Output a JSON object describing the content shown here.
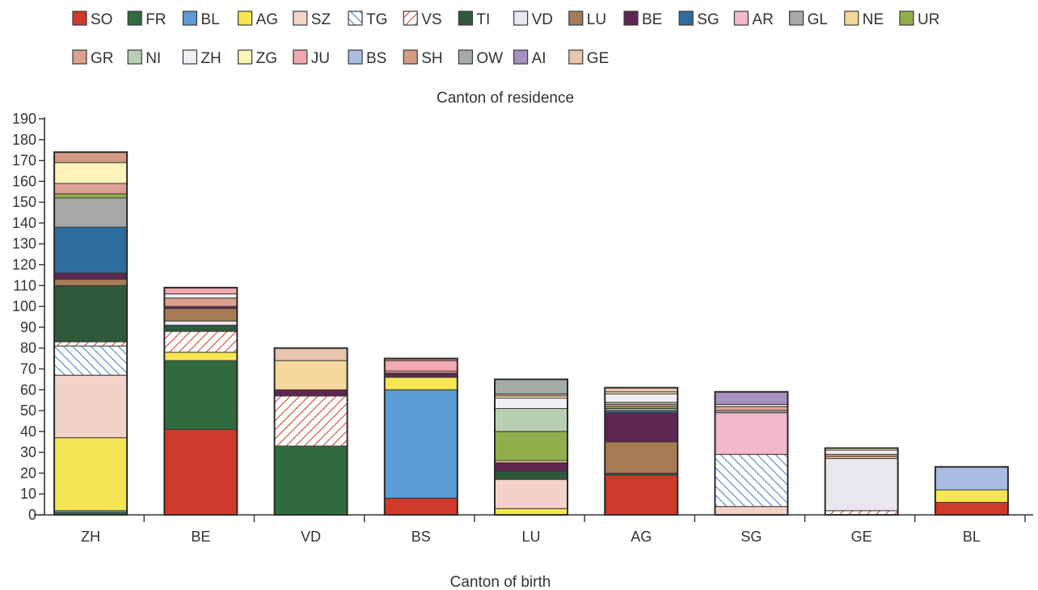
{
  "chart_data": {
    "type": "bar",
    "stacked": true,
    "title": "",
    "legend_title": "Canton of residence",
    "xlabel": "Canton of birth",
    "ylabel": "",
    "ylim": [
      0,
      190
    ],
    "ytick_step": 10,
    "legend_position": "top",
    "categories": [
      "ZH",
      "BE",
      "VD",
      "BS",
      "LU",
      "AG",
      "SG",
      "GE",
      "BL"
    ],
    "series": [
      {
        "name": "SO",
        "color": "#d03a2a",
        "values": [
          0,
          41,
          0,
          8,
          0,
          19,
          0,
          0,
          6
        ]
      },
      {
        "name": "FR",
        "color": "#2f6b3f",
        "values": [
          1,
          33,
          33,
          0,
          0,
          0,
          0,
          0,
          0
        ]
      },
      {
        "name": "BL",
        "color": "#5b9bd8",
        "values": [
          1,
          0,
          0,
          52,
          0,
          0,
          0,
          0,
          0
        ]
      },
      {
        "name": "AG",
        "color": "#f7e653",
        "values": [
          35,
          4,
          0,
          6,
          3,
          0,
          0,
          0,
          6
        ]
      },
      {
        "name": "SZ",
        "color": "#f3d3c8",
        "values": [
          30,
          0,
          0,
          0,
          14,
          0,
          4,
          0,
          0
        ]
      },
      {
        "name": "TG",
        "color": "#ffffff",
        "pattern": "diag-blue",
        "values": [
          14,
          0,
          0,
          0,
          0,
          0,
          25,
          0,
          0
        ]
      },
      {
        "name": "VS",
        "color": "#ffffff",
        "pattern": "diag-red",
        "values": [
          2,
          10,
          24,
          0,
          0,
          0,
          0,
          2,
          0
        ]
      },
      {
        "name": "TI",
        "color": "#2d5a3a",
        "values": [
          27,
          3,
          0,
          0,
          4,
          1,
          0,
          0,
          0
        ]
      },
      {
        "name": "VD",
        "color": "#eae6ee",
        "values": [
          0,
          2,
          0,
          0,
          0,
          0,
          0,
          25,
          0
        ]
      },
      {
        "name": "LU",
        "color": "#a97b55",
        "values": [
          3,
          6,
          0,
          0,
          0,
          15,
          0,
          0,
          0
        ]
      },
      {
        "name": "BE",
        "color": "#5e2650",
        "values": [
          3,
          1,
          3,
          2,
          4,
          14,
          0,
          0,
          0
        ]
      },
      {
        "name": "SG",
        "color": "#2f6d9e",
        "values": [
          22,
          0,
          0,
          0,
          0,
          1,
          0,
          0,
          0
        ]
      },
      {
        "name": "AR",
        "color": "#f2b8cb",
        "values": [
          0,
          0,
          0,
          0,
          0,
          0,
          20,
          0,
          0
        ]
      },
      {
        "name": "GL",
        "color": "#a8a8a8",
        "values": [
          14,
          0,
          0,
          0,
          0,
          1,
          1,
          0,
          0
        ]
      },
      {
        "name": "NE",
        "color": "#f5d79b",
        "values": [
          0,
          0,
          14,
          0,
          1,
          0,
          0,
          1,
          0
        ]
      },
      {
        "name": "UR",
        "color": "#8fae4c",
        "values": [
          2,
          0,
          0,
          0,
          14,
          1,
          0,
          0,
          0
        ]
      },
      {
        "name": "GR",
        "color": "#dca090",
        "values": [
          5,
          4,
          0,
          1,
          0,
          1,
          2,
          1,
          0
        ]
      },
      {
        "name": "NI",
        "color": "#b9cfb3",
        "values": [
          0,
          0,
          0,
          0,
          11,
          1,
          0,
          0,
          0
        ]
      },
      {
        "name": "ZH",
        "color": "#f1eef5",
        "values": [
          0,
          2,
          0,
          0,
          5,
          4,
          1,
          2,
          0
        ]
      },
      {
        "name": "ZG",
        "color": "#fbf3b8",
        "values": [
          10,
          0,
          0,
          0,
          1,
          1,
          0,
          1,
          0
        ]
      },
      {
        "name": "JU",
        "color": "#f2a8b0",
        "values": [
          0,
          3,
          0,
          5,
          0,
          0,
          0,
          0,
          0
        ]
      },
      {
        "name": "BS",
        "color": "#a9bde3",
        "values": [
          0,
          0,
          0,
          0,
          0,
          0,
          0,
          0,
          11
        ]
      },
      {
        "name": "SH",
        "color": "#d49b85",
        "values": [
          5,
          0,
          0,
          1,
          1,
          0,
          0,
          0,
          0
        ]
      },
      {
        "name": "OW",
        "color": "#a5aca5",
        "values": [
          0,
          0,
          0,
          0,
          7,
          0,
          0,
          0,
          0
        ]
      },
      {
        "name": "AI",
        "color": "#a792bf",
        "values": [
          0,
          0,
          0,
          0,
          0,
          0,
          6,
          0,
          0
        ]
      },
      {
        "name": "GE",
        "color": "#e9c5ae",
        "values": [
          0,
          0,
          6,
          0,
          0,
          2,
          0,
          0,
          0
        ]
      }
    ]
  }
}
